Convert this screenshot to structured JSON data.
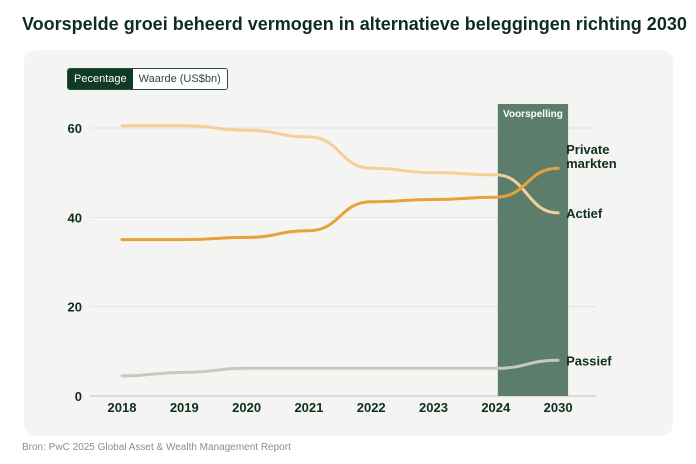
{
  "title": "Voorspelde groei beheerd vermogen in alternatieve beleggingen richting 2030",
  "toggle": {
    "options": [
      "Pecentage",
      "Waarde (US$bn)"
    ],
    "active": 0
  },
  "source": "Bron: PwC 2025 Global Asset & Wealth Management Report",
  "chart_data": {
    "type": "line",
    "categories": [
      "2018",
      "2019",
      "2020",
      "2021",
      "2022",
      "2023",
      "2024",
      "2030"
    ],
    "ylim": [
      0,
      60
    ],
    "yticks": [
      0,
      20,
      40,
      60
    ],
    "grid": true,
    "forecast_label": "Voorspelling",
    "series": [
      {
        "name": "Actief",
        "label_lines": [
          "Actief"
        ],
        "color": "#f4cf9a",
        "values": [
          60.5,
          60.5,
          59.5,
          58,
          51,
          50,
          49.5,
          41
        ]
      },
      {
        "name": "Private markten",
        "label_lines": [
          "Private",
          "markten"
        ],
        "color": "#e9a23b",
        "values": [
          35,
          35,
          35.5,
          37,
          43.5,
          44,
          44.5,
          51
        ]
      },
      {
        "name": "Passief",
        "label_lines": [
          "Passief"
        ],
        "color": "#c9c8c0",
        "values": [
          4.5,
          5.3,
          6.2,
          6.2,
          6.2,
          6.2,
          6.2,
          8
        ]
      }
    ]
  }
}
